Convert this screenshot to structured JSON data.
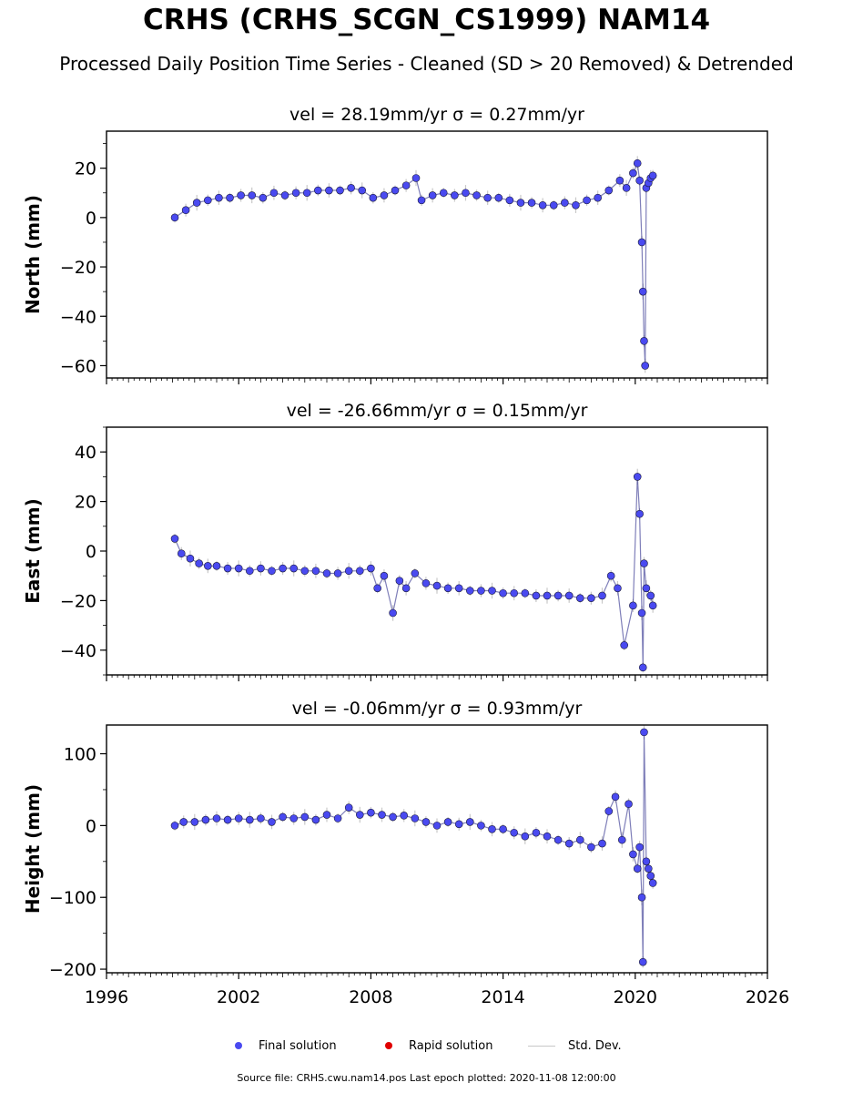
{
  "page": {
    "title": "CRHS (CRHS_SCGN_CS1999) NAM14",
    "subtitle": "Processed Daily Position Time Series - Cleaned (SD > 20 Removed) & Detrended",
    "footer": "Source file: CRHS.cwu.nam14.pos  Last epoch plotted: 2020-11-08 12:00:00"
  },
  "legend": {
    "final_label": "Final solution",
    "rapid_label": "Rapid solution",
    "std_label": "Std. Dev.",
    "final_color": "#4a4af0",
    "rapid_color": "#e00000",
    "std_color": "#c8c8c8"
  },
  "chart_data": [
    {
      "type": "scatter",
      "panel": "north",
      "title": "vel = 28.19mm/yr   σ = 0.27mm/yr",
      "ylabel": "North (mm)",
      "xlabel": "",
      "xlim": [
        1996,
        2026
      ],
      "ylim": [
        -65,
        35
      ],
      "xticks": [
        "1996",
        "2002",
        "2008",
        "2014",
        "2020",
        "2026"
      ],
      "yticks": [
        20,
        0,
        -20,
        -40,
        -60
      ],
      "series": [
        {
          "color": "#4a4af0",
          "x": [
            1999.1,
            1999.6,
            2000.1,
            2000.6,
            2001.1,
            2001.6,
            2002.1,
            2002.6,
            2003.1,
            2003.6,
            2004.1,
            2004.6,
            2005.1,
            2005.6,
            2006.1,
            2006.6,
            2007.1,
            2007.6,
            2008.1,
            2008.6,
            2009.1,
            2009.6,
            2010.05,
            2010.3,
            2010.8,
            2011.3,
            2011.8,
            2012.3,
            2012.8,
            2013.3,
            2013.8,
            2014.3,
            2014.8,
            2015.3,
            2015.8,
            2016.3,
            2016.8,
            2017.3,
            2017.8,
            2018.3,
            2018.8,
            2019.3,
            2019.6,
            2019.9,
            2020.1,
            2020.2,
            2020.3,
            2020.35,
            2020.4,
            2020.45,
            2020.5,
            2020.6,
            2020.7,
            2020.8
          ],
          "y": [
            0,
            3,
            6,
            7,
            8,
            8,
            9,
            9,
            8,
            10,
            9,
            10,
            10,
            11,
            11,
            11,
            12,
            11,
            8,
            9,
            11,
            13,
            16,
            7,
            9,
            10,
            9,
            10,
            9,
            8,
            8,
            7,
            6,
            6,
            5,
            5,
            6,
            5,
            7,
            8,
            11,
            15,
            12,
            18,
            22,
            15,
            -10,
            -30,
            -50,
            -60,
            12,
            14,
            16,
            17
          ]
        }
      ]
    },
    {
      "type": "scatter",
      "panel": "east",
      "title": "vel = -26.66mm/yr   σ = 0.15mm/yr",
      "ylabel": "East (mm)",
      "xlabel": "",
      "xlim": [
        1996,
        2026
      ],
      "ylim": [
        -50,
        50
      ],
      "xticks": [
        "1996",
        "2002",
        "2008",
        "2014",
        "2020",
        "2026"
      ],
      "yticks": [
        40,
        20,
        0,
        -20,
        -40
      ],
      "series": [
        {
          "color": "#4a4af0",
          "x": [
            1999.1,
            1999.4,
            1999.8,
            2000.2,
            2000.6,
            2001.0,
            2001.5,
            2002.0,
            2002.5,
            2003.0,
            2003.5,
            2004.0,
            2004.5,
            2005.0,
            2005.5,
            2006.0,
            2006.5,
            2007.0,
            2007.5,
            2008.0,
            2008.3,
            2008.6,
            2009.0,
            2009.3,
            2009.6,
            2010.0,
            2010.5,
            2011.0,
            2011.5,
            2012.0,
            2012.5,
            2013.0,
            2013.5,
            2014.0,
            2014.5,
            2015.0,
            2015.5,
            2016.0,
            2016.5,
            2017.0,
            2017.5,
            2018.0,
            2018.5,
            2018.9,
            2019.2,
            2019.5,
            2019.9,
            2020.1,
            2020.2,
            2020.3,
            2020.35,
            2020.4,
            2020.5,
            2020.7,
            2020.8
          ],
          "y": [
            5,
            -1,
            -3,
            -5,
            -6,
            -6,
            -7,
            -7,
            -8,
            -7,
            -8,
            -7,
            -7,
            -8,
            -8,
            -9,
            -9,
            -8,
            -8,
            -7,
            -15,
            -10,
            -25,
            -12,
            -15,
            -9,
            -13,
            -14,
            -15,
            -15,
            -16,
            -16,
            -16,
            -17,
            -17,
            -17,
            -18,
            -18,
            -18,
            -18,
            -19,
            -19,
            -18,
            -10,
            -15,
            -38,
            -22,
            30,
            15,
            -25,
            -47,
            -5,
            -15,
            -18,
            -22
          ]
        }
      ]
    },
    {
      "type": "scatter",
      "panel": "height",
      "title": "vel = -0.06mm/yr   σ = 0.93mm/yr",
      "ylabel": "Height (mm)",
      "xlabel": "",
      "xlim": [
        1996,
        2026
      ],
      "ylim": [
        -205,
        140
      ],
      "xticks": [
        "1996",
        "2002",
        "2008",
        "2014",
        "2020",
        "2026"
      ],
      "yticks": [
        100,
        0,
        -100,
        -200
      ],
      "series": [
        {
          "color": "#4a4af0",
          "x": [
            1999.1,
            1999.5,
            2000.0,
            2000.5,
            2001.0,
            2001.5,
            2002.0,
            2002.5,
            2003.0,
            2003.5,
            2004.0,
            2004.5,
            2005.0,
            2005.5,
            2006.0,
            2006.5,
            2007.0,
            2007.5,
            2008.0,
            2008.5,
            2009.0,
            2009.5,
            2010.0,
            2010.5,
            2011.0,
            2011.5,
            2012.0,
            2012.5,
            2013.0,
            2013.5,
            2014.0,
            2014.5,
            2015.0,
            2015.5,
            2016.0,
            2016.5,
            2017.0,
            2017.5,
            2018.0,
            2018.5,
            2018.8,
            2019.1,
            2019.4,
            2019.7,
            2019.9,
            2020.1,
            2020.2,
            2020.3,
            2020.35,
            2020.4,
            2020.5,
            2020.6,
            2020.7,
            2020.8
          ],
          "y": [
            0,
            5,
            5,
            8,
            10,
            8,
            10,
            8,
            10,
            5,
            12,
            10,
            12,
            8,
            15,
            10,
            25,
            15,
            18,
            15,
            12,
            14,
            10,
            5,
            0,
            5,
            2,
            5,
            0,
            -5,
            -5,
            -10,
            -15,
            -10,
            -15,
            -20,
            -25,
            -20,
            -30,
            -25,
            20,
            40,
            -20,
            30,
            -40,
            -60,
            -30,
            -100,
            -190,
            130,
            -50,
            -60,
            -70,
            -80
          ]
        }
      ]
    }
  ]
}
